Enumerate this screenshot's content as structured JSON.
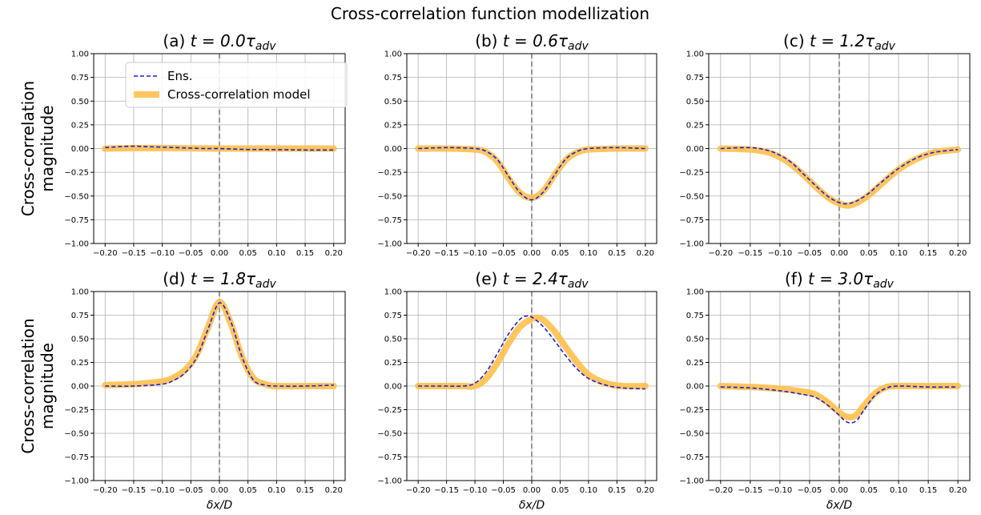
{
  "figure": {
    "title": "Cross-correlation function modellization"
  },
  "legend": {
    "entries": [
      {
        "label": "Ens.",
        "color": "#1f1fd6",
        "style": "dashed"
      },
      {
        "label": "Cross-correlation model",
        "color": "#ffc04d",
        "style": "solid-thick"
      }
    ]
  },
  "colors": {
    "ensemble": "#1f1fd6",
    "model": "#ffc04d",
    "zero_line": "#7f7f7f",
    "grid": "#b0b0b0"
  },
  "chart_data": [
    {
      "type": "line",
      "panel": "a",
      "title_prefix": "(a)",
      "time_label": "t = 0.0",
      "time_unit": "τ",
      "time_sub": "adv",
      "ylabel": [
        "Cross-correlation",
        "magnitude"
      ],
      "xlabel": "",
      "xlim": [
        -0.22,
        0.22
      ],
      "ylim": [
        -1.0,
        1.0
      ],
      "xticks": [
        -0.2,
        -0.15,
        -0.1,
        -0.05,
        0.0,
        0.05,
        0.1,
        0.15,
        0.2
      ],
      "xtick_labels": [
        "−0.20",
        "−0.15",
        "−0.10",
        "−0.05",
        "0.00",
        "0.05",
        "0.10",
        "0.15",
        "0.20"
      ],
      "yticks": [
        -1.0,
        -0.75,
        -0.5,
        -0.25,
        0.0,
        0.25,
        0.5,
        0.75,
        1.0
      ],
      "ytick_labels": [
        "−1.00",
        "−0.75",
        "−0.50",
        "−0.25",
        "0.00",
        "0.25",
        "0.50",
        "0.75",
        "1.00"
      ],
      "grid": true,
      "legend": "top-center",
      "series": [
        {
          "name": "Ens.",
          "x": [
            -0.2,
            -0.175,
            -0.15,
            -0.125,
            -0.1,
            -0.075,
            -0.05,
            -0.025,
            0.0,
            0.025,
            0.05,
            0.075,
            0.1,
            0.125,
            0.15,
            0.175,
            0.2
          ],
          "y": [
            0.01,
            0.02,
            0.025,
            0.02,
            0.015,
            0.01,
            0.005,
            0.0,
            0.0,
            -0.005,
            -0.01,
            -0.01,
            -0.012,
            -0.013,
            -0.015,
            -0.015,
            -0.015
          ]
        },
        {
          "name": "Cross-correlation model",
          "x": [
            -0.2,
            -0.15,
            -0.1,
            -0.05,
            0.0,
            0.05,
            0.1,
            0.15,
            0.2
          ],
          "y": [
            0.0,
            0.005,
            0.005,
            0.003,
            0.0,
            0.0,
            0.0,
            0.0,
            0.0
          ]
        }
      ]
    },
    {
      "type": "line",
      "panel": "b",
      "title_prefix": "(b)",
      "time_label": "t = 0.6",
      "time_unit": "τ",
      "time_sub": "adv",
      "ylabel": "",
      "xlabel": "",
      "xlim": [
        -0.22,
        0.22
      ],
      "ylim": [
        -1.0,
        1.0
      ],
      "xticks": [
        -0.2,
        -0.15,
        -0.1,
        -0.05,
        0.0,
        0.05,
        0.1,
        0.15,
        0.2
      ],
      "xtick_labels": [
        "−0.20",
        "−0.15",
        "−0.10",
        "−0.05",
        "0.00",
        "0.05",
        "0.10",
        "0.15",
        "0.20"
      ],
      "yticks": [
        -1.0,
        -0.75,
        -0.5,
        -0.25,
        0.0,
        0.25,
        0.5,
        0.75,
        1.0
      ],
      "ytick_labels": [
        "−1.00",
        "−0.75",
        "−0.50",
        "−0.25",
        "0.00",
        "0.25",
        "0.50",
        "0.75",
        "1.00"
      ],
      "grid": true,
      "series": [
        {
          "name": "Ens.",
          "x": [
            -0.2,
            -0.15,
            -0.1,
            -0.08,
            -0.06,
            -0.04,
            -0.02,
            0.0,
            0.02,
            0.04,
            0.06,
            0.08,
            0.1,
            0.15,
            0.2
          ],
          "y": [
            0.0,
            0.01,
            0.0,
            -0.03,
            -0.12,
            -0.3,
            -0.47,
            -0.54,
            -0.46,
            -0.28,
            -0.11,
            -0.03,
            0.0,
            0.01,
            0.0
          ]
        },
        {
          "name": "Cross-correlation model",
          "x": [
            -0.2,
            -0.15,
            -0.1,
            -0.08,
            -0.06,
            -0.04,
            -0.02,
            0.0,
            0.02,
            0.04,
            0.06,
            0.08,
            0.1,
            0.15,
            0.2
          ],
          "y": [
            0.0,
            0.0,
            -0.01,
            -0.04,
            -0.14,
            -0.32,
            -0.47,
            -0.52,
            -0.45,
            -0.28,
            -0.12,
            -0.04,
            -0.01,
            0.0,
            0.0
          ]
        }
      ]
    },
    {
      "type": "line",
      "panel": "c",
      "title_prefix": "(c)",
      "time_label": "t = 1.2",
      "time_unit": "τ",
      "time_sub": "adv",
      "ylabel": "",
      "xlabel": "",
      "xlim": [
        -0.22,
        0.22
      ],
      "ylim": [
        -1.0,
        1.0
      ],
      "xticks": [
        -0.2,
        -0.15,
        -0.1,
        -0.05,
        0.0,
        0.05,
        0.1,
        0.15,
        0.2
      ],
      "xtick_labels": [
        "−0.20",
        "−0.15",
        "−0.10",
        "−0.05",
        "0.00",
        "0.05",
        "0.10",
        "0.15",
        "0.20"
      ],
      "yticks": [
        -1.0,
        -0.75,
        -0.5,
        -0.25,
        0.0,
        0.25,
        0.5,
        0.75,
        1.0
      ],
      "ytick_labels": [
        "−1.00",
        "−0.75",
        "−0.50",
        "−0.25",
        "0.00",
        "0.25",
        "0.50",
        "0.75",
        "1.00"
      ],
      "grid": true,
      "series": [
        {
          "name": "Ens.",
          "x": [
            -0.2,
            -0.15,
            -0.12,
            -0.1,
            -0.08,
            -0.06,
            -0.04,
            -0.02,
            0.0,
            0.015,
            0.03,
            0.05,
            0.07,
            0.1,
            0.13,
            0.16,
            0.2
          ],
          "y": [
            0.0,
            0.01,
            -0.02,
            -0.07,
            -0.15,
            -0.27,
            -0.39,
            -0.5,
            -0.57,
            -0.58,
            -0.55,
            -0.47,
            -0.36,
            -0.21,
            -0.1,
            -0.04,
            -0.01
          ]
        },
        {
          "name": "Cross-correlation model",
          "x": [
            -0.2,
            -0.15,
            -0.12,
            -0.1,
            -0.08,
            -0.06,
            -0.04,
            -0.02,
            0.0,
            0.015,
            0.03,
            0.05,
            0.07,
            0.1,
            0.13,
            0.16,
            0.2
          ],
          "y": [
            0.0,
            -0.01,
            -0.04,
            -0.09,
            -0.17,
            -0.28,
            -0.4,
            -0.51,
            -0.58,
            -0.6,
            -0.57,
            -0.49,
            -0.38,
            -0.22,
            -0.11,
            -0.04,
            -0.01
          ]
        }
      ]
    },
    {
      "type": "line",
      "panel": "d",
      "title_prefix": "(d)",
      "time_label": "t = 1.8",
      "time_unit": "τ",
      "time_sub": "adv",
      "ylabel": [
        "Cross-correlation",
        "magnitude"
      ],
      "xlabel": "δx/D",
      "xlim": [
        -0.22,
        0.22
      ],
      "ylim": [
        -1.0,
        1.0
      ],
      "xticks": [
        -0.2,
        -0.15,
        -0.1,
        -0.05,
        0.0,
        0.05,
        0.1,
        0.15,
        0.2
      ],
      "xtick_labels": [
        "−0.20",
        "−0.15",
        "−0.10",
        "−0.05",
        "0.00",
        "0.05",
        "0.10",
        "0.15",
        "0.20"
      ],
      "yticks": [
        -1.0,
        -0.75,
        -0.5,
        -0.25,
        0.0,
        0.25,
        0.5,
        0.75,
        1.0
      ],
      "ytick_labels": [
        "−1.00",
        "−0.75",
        "−0.50",
        "−0.25",
        "0.00",
        "0.25",
        "0.50",
        "0.75",
        "1.00"
      ],
      "grid": true,
      "series": [
        {
          "name": "Ens.",
          "x": [
            -0.2,
            -0.15,
            -0.1,
            -0.08,
            -0.06,
            -0.04,
            -0.02,
            0.0,
            0.02,
            0.04,
            0.06,
            0.08,
            0.1,
            0.15,
            0.2
          ],
          "y": [
            0.0,
            0.0,
            0.02,
            0.06,
            0.14,
            0.3,
            0.6,
            0.88,
            0.68,
            0.3,
            0.06,
            0.01,
            0.0,
            0.0,
            0.01
          ]
        },
        {
          "name": "Cross-correlation model",
          "x": [
            -0.2,
            -0.15,
            -0.1,
            -0.08,
            -0.06,
            -0.04,
            -0.02,
            0.0,
            0.02,
            0.04,
            0.06,
            0.08,
            0.1,
            0.15,
            0.2
          ],
          "y": [
            0.01,
            0.02,
            0.05,
            0.09,
            0.17,
            0.33,
            0.62,
            0.89,
            0.66,
            0.3,
            0.08,
            0.02,
            0.0,
            0.0,
            0.0
          ]
        }
      ]
    },
    {
      "type": "line",
      "panel": "e",
      "title_prefix": "(e)",
      "time_label": "t = 2.4",
      "time_unit": "τ",
      "time_sub": "adv",
      "ylabel": "",
      "xlabel": "δx/D",
      "xlim": [
        -0.22,
        0.22
      ],
      "ylim": [
        -1.0,
        1.0
      ],
      "xticks": [
        -0.2,
        -0.15,
        -0.1,
        -0.05,
        0.0,
        0.05,
        0.1,
        0.15,
        0.2
      ],
      "xtick_labels": [
        "−0.20",
        "−0.15",
        "−0.10",
        "−0.05",
        "0.00",
        "0.05",
        "0.10",
        "0.15",
        "0.20"
      ],
      "yticks": [
        -1.0,
        -0.75,
        -0.5,
        -0.25,
        0.0,
        0.25,
        0.5,
        0.75,
        1.0
      ],
      "ytick_labels": [
        "−1.00",
        "−0.75",
        "−0.50",
        "−0.25",
        "0.00",
        "0.25",
        "0.50",
        "0.75",
        "1.00"
      ],
      "grid": true,
      "series": [
        {
          "name": "Ens.",
          "x": [
            -0.2,
            -0.15,
            -0.12,
            -0.1,
            -0.08,
            -0.06,
            -0.04,
            -0.02,
            -0.01,
            0.0,
            0.02,
            0.04,
            0.06,
            0.08,
            0.1,
            0.13,
            0.16,
            0.2
          ],
          "y": [
            0.0,
            0.0,
            0.0,
            0.03,
            0.15,
            0.35,
            0.56,
            0.71,
            0.74,
            0.73,
            0.63,
            0.48,
            0.32,
            0.18,
            0.08,
            0.01,
            -0.02,
            -0.03
          ]
        },
        {
          "name": "Cross-correlation model",
          "x": [
            -0.2,
            -0.15,
            -0.12,
            -0.1,
            -0.08,
            -0.06,
            -0.04,
            -0.02,
            0.0,
            0.01,
            0.02,
            0.04,
            0.06,
            0.08,
            0.1,
            0.13,
            0.16,
            0.2
          ],
          "y": [
            0.0,
            0.0,
            0.0,
            0.0,
            0.08,
            0.25,
            0.46,
            0.63,
            0.71,
            0.72,
            0.7,
            0.58,
            0.41,
            0.25,
            0.12,
            0.03,
            0.0,
            0.0
          ]
        }
      ]
    },
    {
      "type": "line",
      "panel": "f",
      "title_prefix": "(f)",
      "time_label": "t = 3.0",
      "time_unit": "τ",
      "time_sub": "adv",
      "ylabel": "",
      "xlabel": "δx/D",
      "xlim": [
        -0.22,
        0.22
      ],
      "ylim": [
        -1.0,
        1.0
      ],
      "xticks": [
        -0.2,
        -0.15,
        -0.1,
        -0.05,
        0.0,
        0.05,
        0.1,
        0.15,
        0.2
      ],
      "xtick_labels": [
        "−0.20",
        "−0.15",
        "−0.10",
        "−0.05",
        "0.00",
        "0.05",
        "0.10",
        "0.15",
        "0.20"
      ],
      "yticks": [
        -1.0,
        -0.75,
        -0.5,
        -0.25,
        0.0,
        0.25,
        0.5,
        0.75,
        1.0
      ],
      "ytick_labels": [
        "−1.00",
        "−0.75",
        "−0.50",
        "−0.25",
        "0.00",
        "0.25",
        "0.50",
        "0.75",
        "1.00"
      ],
      "grid": true,
      "series": [
        {
          "name": "Ens.",
          "x": [
            -0.2,
            -0.15,
            -0.1,
            -0.06,
            -0.04,
            -0.02,
            0.0,
            0.01,
            0.02,
            0.03,
            0.04,
            0.06,
            0.08,
            0.1,
            0.15,
            0.2
          ],
          "y": [
            -0.01,
            -0.02,
            -0.05,
            -0.09,
            -0.12,
            -0.2,
            -0.31,
            -0.37,
            -0.39,
            -0.36,
            -0.27,
            -0.1,
            -0.02,
            0.0,
            -0.01,
            -0.01
          ]
        },
        {
          "name": "Cross-correlation model",
          "x": [
            -0.2,
            -0.15,
            -0.1,
            -0.06,
            -0.04,
            -0.02,
            0.0,
            0.01,
            0.02,
            0.03,
            0.04,
            0.06,
            0.08,
            0.1,
            0.15,
            0.2
          ],
          "y": [
            0.0,
            -0.01,
            -0.03,
            -0.06,
            -0.09,
            -0.17,
            -0.28,
            -0.32,
            -0.33,
            -0.3,
            -0.22,
            -0.08,
            -0.01,
            0.0,
            0.0,
            0.0
          ]
        }
      ]
    }
  ]
}
